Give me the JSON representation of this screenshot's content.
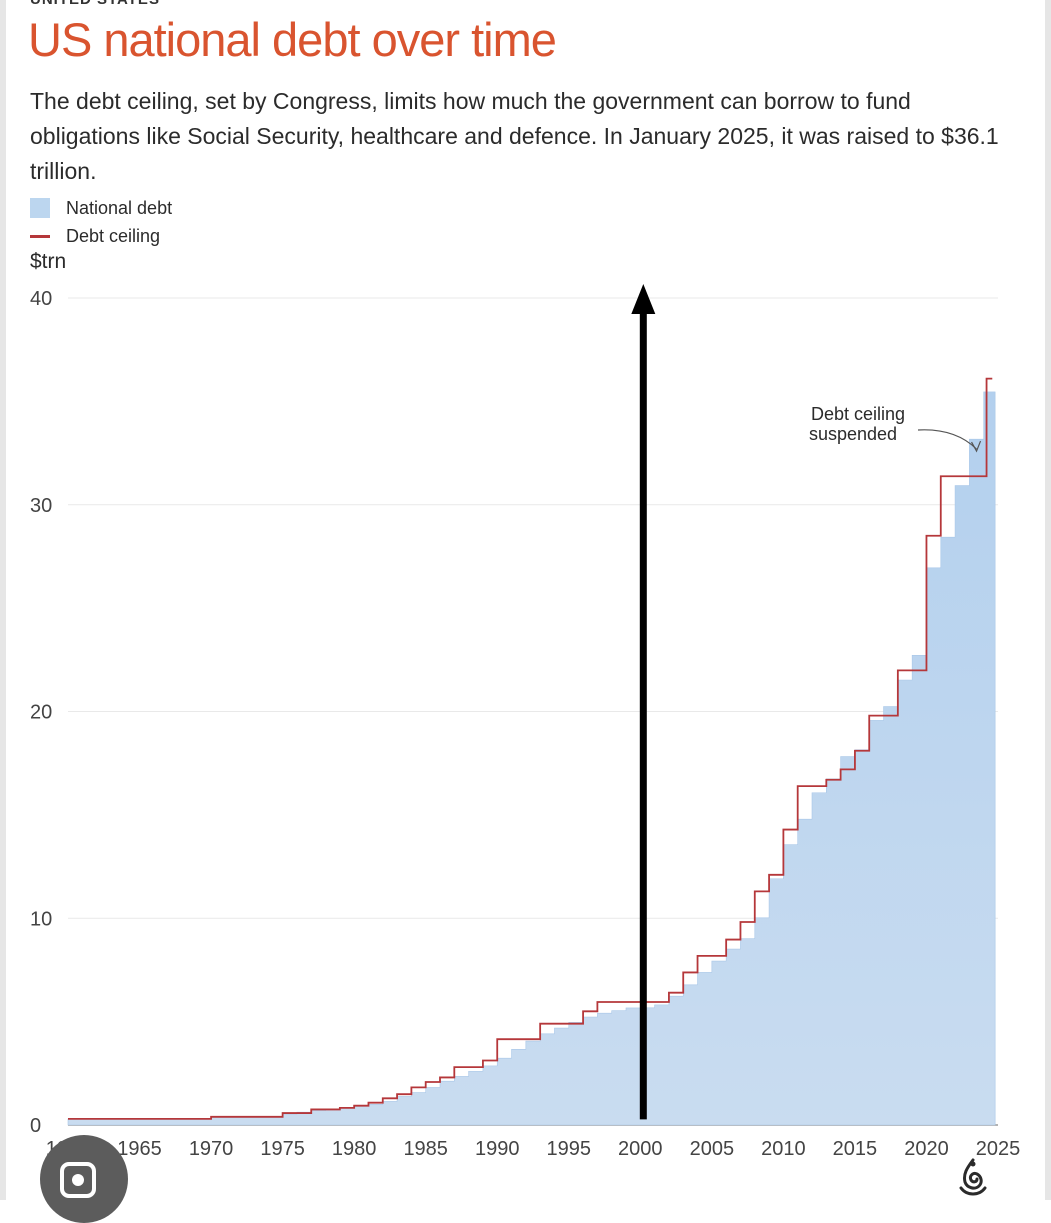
{
  "header": {
    "kicker": "UNITED STATES",
    "title": "US national debt over time",
    "subtitle": "The debt ceiling, set by Congress, limits how much the government can borrow to fund obligations like Social Security, healthcare and defence. In January 2025, it was raised to $36.1 trillion."
  },
  "legend": {
    "debt_label": "National debt",
    "ceiling_label": "Debt ceiling"
  },
  "colors": {
    "title": "#d9542f",
    "debt_fill": "#bcd6ef",
    "ceiling_line": "#b5373a",
    "gridline": "#e9e9e9",
    "arrow": "#000000",
    "annotation": "#2b2b2b"
  },
  "icons": {
    "lens_button": "lens-search-icon",
    "publisher_logo": "al-jazeera-logo-icon"
  },
  "chart_data": {
    "type": "area",
    "title": "US national debt over time",
    "ylabel": "$trn",
    "xlim": [
      1960,
      2025
    ],
    "ylim": [
      0,
      40
    ],
    "grid": true,
    "legend_position": "top-left",
    "yticks": [
      0,
      10,
      20,
      30,
      40
    ],
    "xticks": [
      1960,
      1965,
      1970,
      1975,
      1980,
      1985,
      1990,
      1995,
      2000,
      2005,
      2010,
      2015,
      2020,
      2025
    ],
    "series": [
      {
        "name": "National debt",
        "kind": "step-area",
        "points": [
          [
            1960,
            0.29
          ],
          [
            1965,
            0.32
          ],
          [
            1970,
            0.37
          ],
          [
            1975,
            0.53
          ],
          [
            1976,
            0.62
          ],
          [
            1977,
            0.7
          ],
          [
            1978,
            0.77
          ],
          [
            1979,
            0.83
          ],
          [
            1980,
            0.91
          ],
          [
            1981,
            1.0
          ],
          [
            1982,
            1.14
          ],
          [
            1983,
            1.38
          ],
          [
            1984,
            1.57
          ],
          [
            1985,
            1.82
          ],
          [
            1986,
            2.12
          ],
          [
            1987,
            2.35
          ],
          [
            1988,
            2.6
          ],
          [
            1989,
            2.86
          ],
          [
            1990,
            3.23
          ],
          [
            1991,
            3.66
          ],
          [
            1992,
            4.06
          ],
          [
            1993,
            4.41
          ],
          [
            1994,
            4.69
          ],
          [
            1995,
            4.97
          ],
          [
            1996,
            5.22
          ],
          [
            1997,
            5.41
          ],
          [
            1998,
            5.53
          ],
          [
            1999,
            5.66
          ],
          [
            2000,
            5.67
          ],
          [
            2001,
            5.81
          ],
          [
            2002,
            6.23
          ],
          [
            2003,
            6.78
          ],
          [
            2004,
            7.38
          ],
          [
            2005,
            7.93
          ],
          [
            2006,
            8.51
          ],
          [
            2007,
            9.01
          ],
          [
            2008,
            10.02
          ],
          [
            2009,
            11.91
          ],
          [
            2010,
            13.56
          ],
          [
            2011,
            14.79
          ],
          [
            2012,
            16.07
          ],
          [
            2013,
            16.74
          ],
          [
            2014,
            17.82
          ],
          [
            2015,
            18.15
          ],
          [
            2016,
            19.57
          ],
          [
            2017,
            20.24
          ],
          [
            2018,
            21.52
          ],
          [
            2019,
            22.72
          ],
          [
            2020,
            26.95
          ],
          [
            2021,
            28.43
          ],
          [
            2022,
            30.93
          ],
          [
            2023,
            33.17
          ],
          [
            2024,
            35.46
          ],
          [
            2024.8,
            35.46
          ]
        ]
      },
      {
        "name": "Debt ceiling",
        "kind": "step-line",
        "points": [
          [
            1960,
            0.295
          ],
          [
            1970,
            0.395
          ],
          [
            1975,
            0.577
          ],
          [
            1977,
            0.752
          ],
          [
            1979,
            0.83
          ],
          [
            1980,
            0.935
          ],
          [
            1981,
            1.079
          ],
          [
            1982,
            1.29
          ],
          [
            1983,
            1.49
          ],
          [
            1984,
            1.82
          ],
          [
            1985,
            2.08
          ],
          [
            1986,
            2.3
          ],
          [
            1987,
            2.8
          ],
          [
            1989,
            3.12
          ],
          [
            1990,
            4.15
          ],
          [
            1991,
            4.15
          ],
          [
            1993,
            4.9
          ],
          [
            1996,
            5.5
          ],
          [
            1997,
            5.95
          ],
          [
            2000,
            5.95
          ],
          [
            2002,
            6.4
          ],
          [
            2003,
            7.38
          ],
          [
            2004,
            8.18
          ],
          [
            2006,
            8.97
          ],
          [
            2007,
            9.82
          ],
          [
            2008,
            11.3
          ],
          [
            2009,
            12.1
          ],
          [
            2010,
            14.29
          ],
          [
            2011,
            16.39
          ],
          [
            2013,
            16.7
          ],
          [
            2014,
            17.2
          ],
          [
            2015,
            18.1
          ],
          [
            2016,
            19.8
          ],
          [
            2018,
            21.99
          ],
          [
            2019,
            21.99
          ],
          [
            2020,
            28.5
          ],
          [
            2021,
            31.38
          ],
          [
            2023,
            31.38
          ],
          [
            2024.2,
            31.38
          ],
          [
            2024.2,
            36.1
          ],
          [
            2024.6,
            36.1
          ]
        ]
      }
    ],
    "annotations": [
      {
        "text_line1": "Debt ceiling",
        "text_line2": "suspended",
        "x": 2023.5,
        "y": 32.5
      }
    ],
    "overlay_arrow": {
      "x": 2000,
      "y_from": 1,
      "y_to": 40
    }
  }
}
